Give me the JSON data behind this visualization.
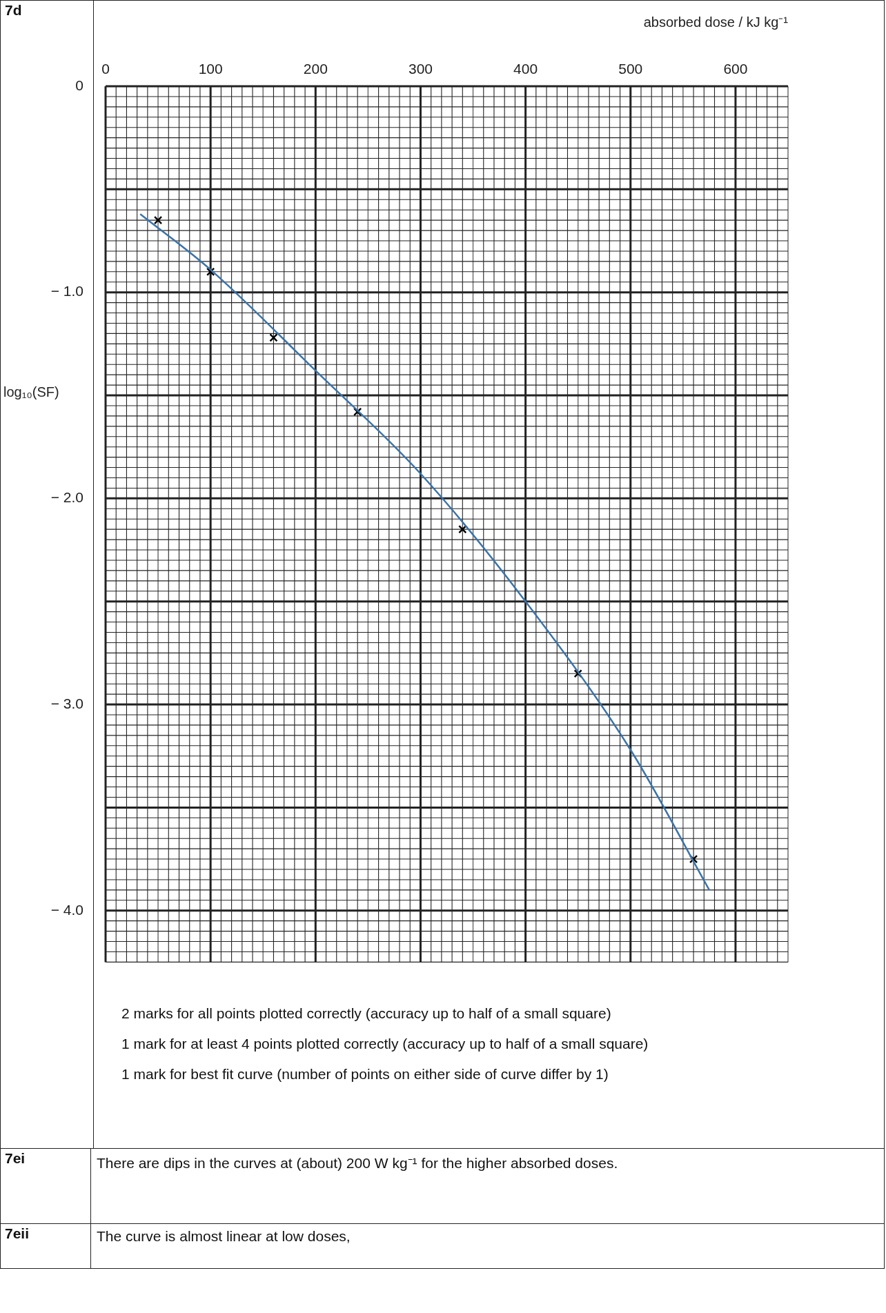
{
  "chart_data": {
    "type": "scatter",
    "xlabel": "absorbed dose / kJ kg⁻¹",
    "ylabel": "log₁₀(SF)",
    "xlim": [
      0,
      650
    ],
    "xticks": [
      0,
      100,
      200,
      300,
      400,
      500,
      600
    ],
    "ylim": [
      -4.25,
      0
    ],
    "yticks": [
      0,
      {
        "value": -1,
        "label": "− 1.0"
      },
      {
        "value": -2,
        "label": "− 2.0"
      },
      {
        "value": -3,
        "label": "− 3.0"
      },
      {
        "value": -4,
        "label": "− 4.0"
      }
    ],
    "grid": true,
    "marker": "cross",
    "series": [
      {
        "color": "#000000",
        "x": [
          50,
          100,
          160,
          240,
          340,
          450,
          560
        ],
        "values": [
          -0.65,
          -0.9,
          -1.22,
          -1.58,
          -2.15,
          -2.85,
          -3.75
        ]
      },
      {
        "type": "line",
        "marker": "none",
        "color": "#3b73a8",
        "x": [
          33,
          100,
          200,
          300,
          400,
          500,
          575
        ],
        "values": [
          -0.62,
          -0.89,
          -1.38,
          -1.88,
          -2.5,
          -3.22,
          -3.9
        ]
      }
    ],
    "annotations": [
      "7d",
      "2 marks for all points plotted correctly (accuracy up to half of a small square)",
      "1 mark for at least 4 points plotted correctly (accuracy up to half of a small square)",
      "1 mark for best fit curve (number of points on either side of curve differ by 1)",
      "7ei",
      "There are dips in the curves at (about) 200 W kg⁻¹ for the higher absorbed doses.",
      "7eii",
      "The curve is almost linear at low doses,"
    ]
  }
}
